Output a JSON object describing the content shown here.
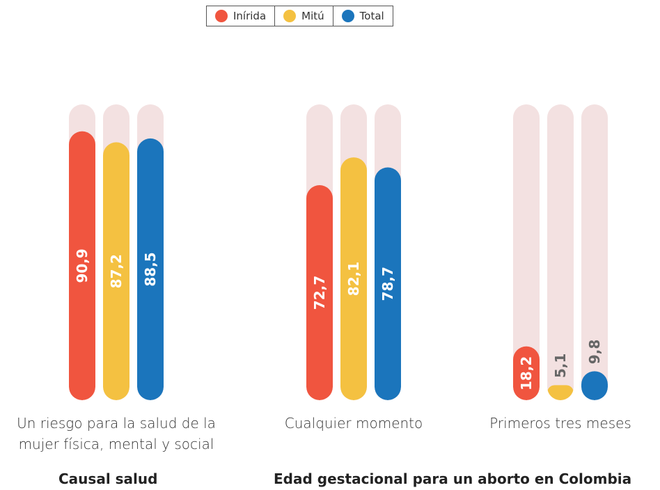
{
  "chart_data": {
    "type": "bar",
    "categories": [
      "Un riesgo para la salud de la mujer física, mental y social",
      "Cualquier momento",
      "Primeros tres meses"
    ],
    "group_titles": [
      "Causal salud",
      "Edad gestacional para un aborto en Colombia"
    ],
    "series": [
      {
        "name": "Inírida",
        "color": "#f0553f",
        "values": [
          90.9,
          72.7,
          18.2
        ],
        "value_labels": [
          "90,9",
          "72,7",
          "18,2"
        ]
      },
      {
        "name": "Mitú",
        "color": "#f4c141",
        "values": [
          87.2,
          82.1,
          5.1
        ],
        "value_labels": [
          "87,2",
          "82,1",
          "5,1"
        ]
      },
      {
        "name": "Total",
        "color": "#1b75bc",
        "values": [
          88.5,
          78.7,
          9.8
        ],
        "value_labels": [
          "88,5",
          "78,7",
          "9,8"
        ]
      }
    ],
    "ylim": [
      0,
      100
    ],
    "track_color": "#f3e1e1"
  }
}
